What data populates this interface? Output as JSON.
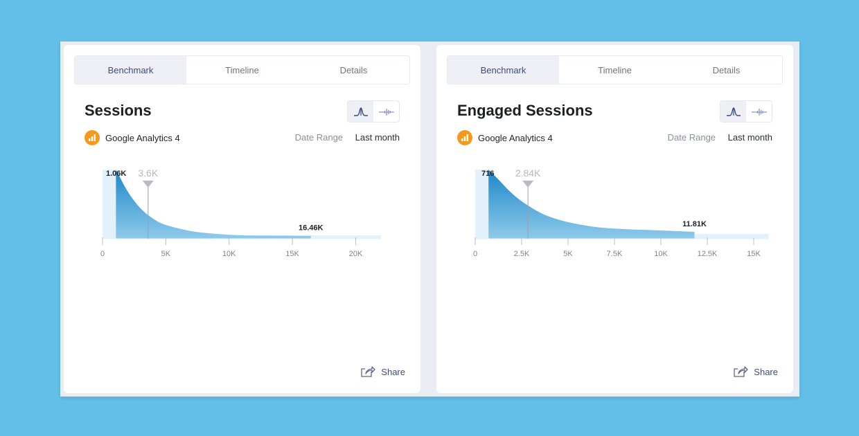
{
  "cards": [
    {
      "tabs": [
        "Benchmark",
        "Timeline",
        "Details"
      ],
      "active_tab": "Benchmark",
      "title": "Sessions",
      "source": "Google Analytics 4",
      "date_range_label": "Date Range",
      "date_range_value": "Last month",
      "share_label": "Share",
      "chart_data": {
        "type": "area",
        "xlim": [
          0,
          22000
        ],
        "x_ticks": [
          0,
          5000,
          10000,
          15000,
          20000
        ],
        "x_tick_labels": [
          "0",
          "5K",
          "10K",
          "15K",
          "20K"
        ],
        "curve": {
          "x": [
            1060,
            2000,
            3000,
            4000,
            5000,
            7000,
            9000,
            11000,
            13000,
            16460
          ],
          "y": [
            100,
            68,
            44,
            29,
            20,
            11,
            7,
            5,
            4.6,
            4.3
          ]
        },
        "tail_end_x": 22000,
        "tail_level": 5,
        "benchmark": {
          "x": 3600,
          "label": "3.6K"
        },
        "start_label": "1.06K",
        "end_label": "16.46K"
      }
    },
    {
      "tabs": [
        "Benchmark",
        "Timeline",
        "Details"
      ],
      "active_tab": "Benchmark",
      "title": "Engaged Sessions",
      "source": "Google Analytics 4",
      "date_range_label": "Date Range",
      "date_range_value": "Last month",
      "share_label": "Share",
      "chart_data": {
        "type": "area",
        "xlim": [
          0,
          15000
        ],
        "x_ticks": [
          0,
          2500,
          5000,
          7500,
          10000,
          12500,
          15000
        ],
        "x_tick_labels": [
          "0",
          "2.5K",
          "5K",
          "7.5K",
          "10K",
          "12.5K",
          "15K"
        ],
        "curve": {
          "x": [
            716,
            1200,
            2000,
            2840,
            3800,
            5000,
            6500,
            8000,
            10000,
            11810
          ],
          "y": [
            100,
            87,
            65,
            48,
            34,
            24,
            17,
            14,
            12,
            10
          ]
        },
        "tail_end_x": 15800,
        "tail_level": 7,
        "benchmark": {
          "x": 2840,
          "label": "2.84K"
        },
        "start_label": "716",
        "end_label": "11.81K"
      }
    }
  ]
}
